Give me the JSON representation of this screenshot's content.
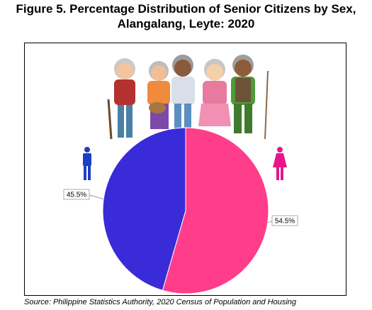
{
  "title_line1": "Figure 5. Percentage Distribution of Senior Citizens by Sex,",
  "title_line2": "Alangalang, Leyte: 2020",
  "source": "Source: Philippine Statistics Authority, 2020 Census of Population and Housing",
  "colors": {
    "male": "#3a2bd8",
    "female": "#ff3d8b",
    "male_icon": "#1a3fc2",
    "female_icon": "#e8168a"
  },
  "icons": [
    "male-icon",
    "female-icon",
    "seniors-illustration"
  ],
  "chart_data": {
    "type": "pie",
    "categories": [
      "Male",
      "Female"
    ],
    "values": [
      45.5,
      54.5
    ],
    "data_labels": [
      "45.5%",
      "54.5%"
    ],
    "start": "12 o'clock, clockwise: Female then Male",
    "legend": "icons (male at left, female at right)"
  }
}
